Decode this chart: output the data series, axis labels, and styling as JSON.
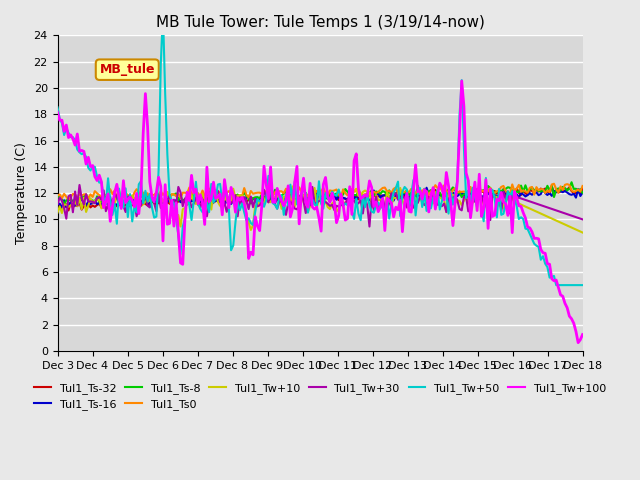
{
  "title": "MB Tule Tower: Tule Temps 1 (3/19/14-now)",
  "xlabel": "",
  "ylabel": "Temperature (C)",
  "ylim": [
    0,
    24
  ],
  "xlim_days": [
    3,
    18
  ],
  "x_tick_labels": [
    "Dec 3",
    "Dec 4",
    "Dec 5",
    "Dec 6",
    "Dec 7",
    "Dec 8",
    "Dec 9",
    "Dec 10",
    "Dec 11",
    "Dec 12",
    "Dec 13",
    "Dec 14",
    "Dec 15",
    "Dec 16",
    "Dec 17",
    "Dec 18"
  ],
  "series_labels": [
    "Tul1_Ts-32",
    "Tul1_Ts-16",
    "Tul1_Ts-8",
    "Tul1_Ts0",
    "Tul1_Tw+10",
    "Tul1_Tw+30",
    "Tul1_Tw+50",
    "Tul1_Tw+100"
  ],
  "series_colors": [
    "#cc0000",
    "#0000cc",
    "#00cc00",
    "#ff8800",
    "#cccc00",
    "#aa00aa",
    "#00cccc",
    "#ff00ff"
  ],
  "series_linewidths": [
    1.5,
    1.5,
    1.5,
    1.5,
    1.5,
    1.5,
    1.5,
    2.0
  ],
  "background_color": "#e8e8e8",
  "plot_bg_color": "#d8d8d8",
  "grid_color": "#ffffff",
  "annotation_text": "MB_tule",
  "annotation_color": "#cc0000",
  "annotation_bg": "#ffff99",
  "annotation_border": "#cc8800"
}
